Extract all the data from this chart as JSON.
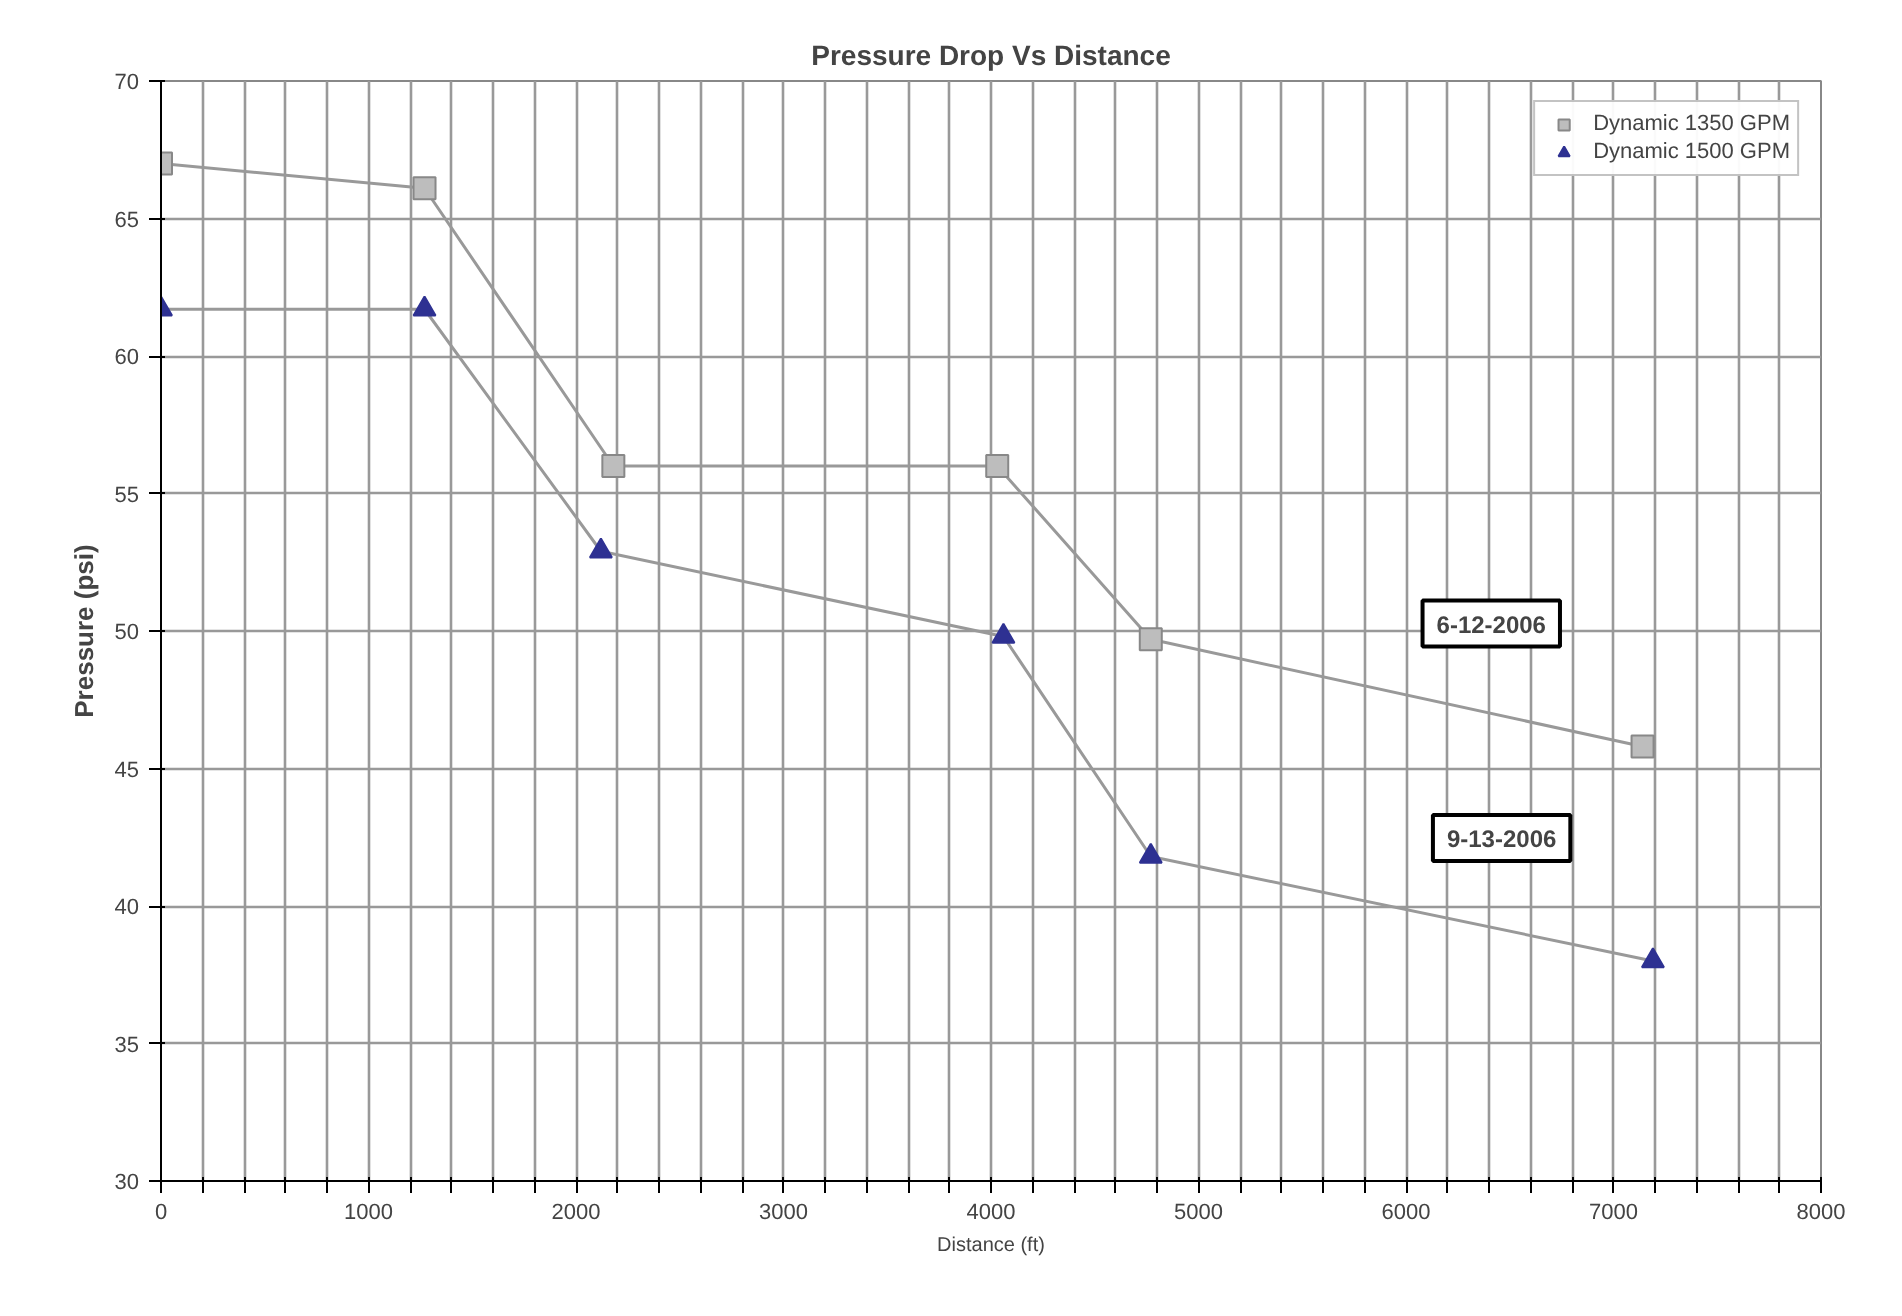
{
  "chart_data": {
    "type": "line",
    "title": "Pressure Drop Vs Distance",
    "xlabel": "Distance (ft)",
    "ylabel": "Pressure (psi)",
    "xlim": [
      0,
      8000
    ],
    "ylim": [
      30,
      70
    ],
    "xticks": [
      0,
      {
        "value": 200,
        "label": null
      },
      {
        "value": 400,
        "label": null
      },
      {
        "value": 600,
        "label": null
      },
      {
        "value": 800,
        "label": null
      },
      1000,
      {
        "value": 1200,
        "label": null
      },
      {
        "value": 1400,
        "label": null
      },
      {
        "value": 1600,
        "label": null
      },
      {
        "value": 1800,
        "label": null
      },
      2000,
      {
        "value": 2200,
        "label": null
      },
      {
        "value": 2400,
        "label": null
      },
      {
        "value": 2600,
        "label": null
      },
      {
        "value": 2800,
        "label": null
      },
      3000,
      {
        "value": 3200,
        "label": null
      },
      {
        "value": 3400,
        "label": null
      },
      {
        "value": 3600,
        "label": null
      },
      {
        "value": 3800,
        "label": null
      },
      4000,
      {
        "value": 4200,
        "label": null
      },
      {
        "value": 4400,
        "label": null
      },
      {
        "value": 4600,
        "label": null
      },
      {
        "value": 4800,
        "label": null
      },
      5000,
      {
        "value": 5200,
        "label": null
      },
      {
        "value": 5400,
        "label": null
      },
      {
        "value": 5600,
        "label": null
      },
      {
        "value": 5800,
        "label": null
      },
      6000,
      {
        "value": 6200,
        "label": null
      },
      {
        "value": 6400,
        "label": null
      },
      {
        "value": 6600,
        "label": null
      },
      {
        "value": 6800,
        "label": null
      },
      7000,
      {
        "value": 7200,
        "label": null
      },
      {
        "value": 7400,
        "label": null
      },
      {
        "value": 7600,
        "label": null
      },
      {
        "value": 7800,
        "label": null
      },
      8000
    ],
    "yticks": [
      30,
      35,
      40,
      45,
      50,
      55,
      60,
      65,
      70
    ],
    "grid": true,
    "legend": "top right",
    "series": [
      {
        "name": "Dynamic 1350 GPM",
        "color": "#bdbdbd",
        "marker": "square",
        "x": [
          0,
          1270,
          2180,
          4030,
          4770,
          7140
        ],
        "values": [
          67,
          66.1,
          56,
          56,
          49.7,
          45.8
        ]
      },
      {
        "name": "Dynamic 1500 GPM",
        "color": "#2e3192",
        "marker": "triangle",
        "x": [
          0,
          1270,
          2120,
          4060,
          4770,
          7190
        ],
        "values": [
          61.7,
          61.7,
          52.9,
          49.8,
          41.8,
          38
        ]
      }
    ],
    "annotations": [
      "6-12-2006",
      "9-13-2006"
    ]
  }
}
